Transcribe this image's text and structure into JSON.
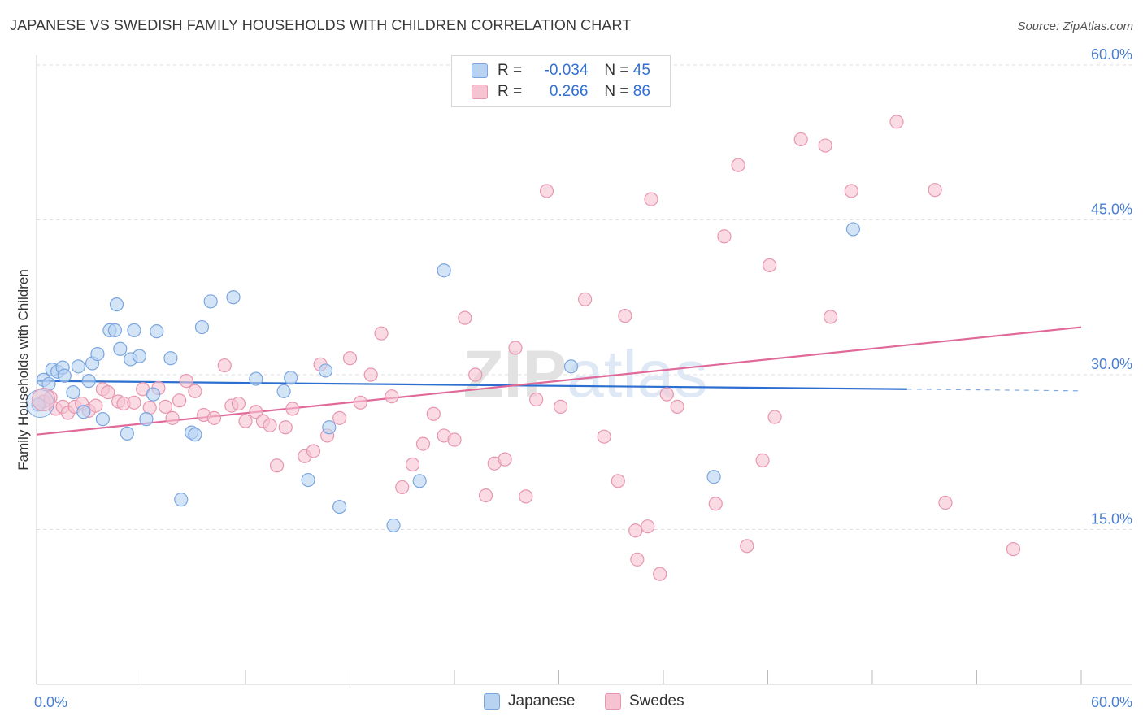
{
  "title": "JAPANESE VS SWEDISH FAMILY HOUSEHOLDS WITH CHILDREN CORRELATION CHART",
  "source": "Source: ZipAtlas.com",
  "watermark": "ZIPatlas",
  "legend": {
    "rows": [
      {
        "r_label": "R =",
        "r_value": "-0.034",
        "n_label": "N =",
        "n_value": "45"
      },
      {
        "r_label": "R =",
        "r_value": " 0.266",
        "n_label": "N =",
        "n_value": "86"
      }
    ]
  },
  "bottom_legend": {
    "japanese": "Japanese",
    "swedes": "Swedes"
  },
  "colors": {
    "japanese_fill": "#b8d2f2",
    "japanese_stroke": "#7aa6e0",
    "japanese_line": "#2c6fd0",
    "swedes_fill": "#f6c3d2",
    "swedes_stroke": "#e896b0",
    "swedes_line": "#e0699a",
    "tick": "#4a7fd0",
    "grid": "#dddddd"
  },
  "chart_data": {
    "type": "scatter",
    "xlabel": "",
    "ylabel": "Family Households with Children",
    "xlim": [
      0,
      60
    ],
    "ylim": [
      0,
      60
    ],
    "x_tick_labels": [
      "0.0%",
      "60.0%"
    ],
    "y_ticks": [
      15,
      30,
      45,
      60
    ],
    "y_tick_labels": [
      "15.0%",
      "30.0%",
      "45.0%",
      "60.0%"
    ],
    "grid": true,
    "series": [
      {
        "name": "Japanese",
        "r": -0.034,
        "n": 45,
        "trend": {
          "x0": 0,
          "y0": 29.4,
          "x1": 50,
          "y1": 28.6,
          "dashed_to": 60
        },
        "points": [
          [
            0.4,
            29.5
          ],
          [
            0.7,
            29.1
          ],
          [
            0.9,
            30.5
          ],
          [
            1.2,
            30.3
          ],
          [
            1.5,
            30.7
          ],
          [
            1.6,
            29.9
          ],
          [
            2.1,
            28.3
          ],
          [
            2.4,
            30.8
          ],
          [
            2.7,
            26.4
          ],
          [
            3.0,
            29.4
          ],
          [
            3.2,
            31.1
          ],
          [
            3.5,
            32.0
          ],
          [
            3.8,
            25.7
          ],
          [
            4.2,
            34.3
          ],
          [
            4.5,
            34.3
          ],
          [
            4.6,
            36.8
          ],
          [
            4.8,
            32.5
          ],
          [
            5.2,
            24.3
          ],
          [
            5.4,
            31.5
          ],
          [
            5.6,
            34.3
          ],
          [
            5.9,
            31.8
          ],
          [
            6.3,
            25.7
          ],
          [
            6.7,
            28.1
          ],
          [
            6.9,
            34.2
          ],
          [
            7.7,
            31.6
          ],
          [
            8.3,
            17.9
          ],
          [
            8.9,
            24.4
          ],
          [
            9.1,
            24.2
          ],
          [
            9.5,
            34.6
          ],
          [
            10.0,
            37.1
          ],
          [
            11.3,
            37.5
          ],
          [
            12.6,
            29.6
          ],
          [
            14.2,
            28.4
          ],
          [
            14.6,
            29.7
          ],
          [
            15.6,
            19.8
          ],
          [
            16.6,
            30.4
          ],
          [
            16.8,
            24.9
          ],
          [
            17.4,
            17.2
          ],
          [
            20.5,
            15.4
          ],
          [
            22.0,
            19.7
          ],
          [
            23.4,
            40.1
          ],
          [
            30.7,
            30.8
          ],
          [
            38.9,
            20.1
          ],
          [
            46.9,
            44.1
          ],
          [
            0.1,
            27.1
          ]
        ]
      },
      {
        "name": "Swedes",
        "r": 0.266,
        "n": 86,
        "trend": {
          "x0": 0,
          "y0": 24.2,
          "x1": 60,
          "y1": 34.6
        },
        "points": [
          [
            0.4,
            27.4
          ],
          [
            0.8,
            27.8
          ],
          [
            1.1,
            26.7
          ],
          [
            1.5,
            26.9
          ],
          [
            1.8,
            26.3
          ],
          [
            2.2,
            26.9
          ],
          [
            2.6,
            27.2
          ],
          [
            3.0,
            26.5
          ],
          [
            3.4,
            27.0
          ],
          [
            3.8,
            28.6
          ],
          [
            4.1,
            28.3
          ],
          [
            4.7,
            27.4
          ],
          [
            5.0,
            27.2
          ],
          [
            5.6,
            27.3
          ],
          [
            6.1,
            28.6
          ],
          [
            6.5,
            26.8
          ],
          [
            7.0,
            28.7
          ],
          [
            7.4,
            26.9
          ],
          [
            7.8,
            25.8
          ],
          [
            8.2,
            27.5
          ],
          [
            8.6,
            29.4
          ],
          [
            9.1,
            28.4
          ],
          [
            9.6,
            26.1
          ],
          [
            10.2,
            25.8
          ],
          [
            10.8,
            30.9
          ],
          [
            11.2,
            27.0
          ],
          [
            11.6,
            27.2
          ],
          [
            12.0,
            25.5
          ],
          [
            12.6,
            26.4
          ],
          [
            13.0,
            25.5
          ],
          [
            13.4,
            25.1
          ],
          [
            13.8,
            21.2
          ],
          [
            14.3,
            24.9
          ],
          [
            14.7,
            26.7
          ],
          [
            15.4,
            22.1
          ],
          [
            15.9,
            22.6
          ],
          [
            16.3,
            31.0
          ],
          [
            16.7,
            24.1
          ],
          [
            17.4,
            25.8
          ],
          [
            18.0,
            31.6
          ],
          [
            18.6,
            27.3
          ],
          [
            19.2,
            30.0
          ],
          [
            19.8,
            34.0
          ],
          [
            20.4,
            27.9
          ],
          [
            21.0,
            19.1
          ],
          [
            21.6,
            21.3
          ],
          [
            22.2,
            23.3
          ],
          [
            22.8,
            26.2
          ],
          [
            23.4,
            24.1
          ],
          [
            24.0,
            23.7
          ],
          [
            24.6,
            35.5
          ],
          [
            25.2,
            30.0
          ],
          [
            25.8,
            18.3
          ],
          [
            26.3,
            21.4
          ],
          [
            26.9,
            21.8
          ],
          [
            27.5,
            32.6
          ],
          [
            28.1,
            18.2
          ],
          [
            28.7,
            27.6
          ],
          [
            29.3,
            47.8
          ],
          [
            30.1,
            26.9
          ],
          [
            31.5,
            37.3
          ],
          [
            32.6,
            24.0
          ],
          [
            33.4,
            19.7
          ],
          [
            33.8,
            35.7
          ],
          [
            34.4,
            14.9
          ],
          [
            35.1,
            15.3
          ],
          [
            35.3,
            47.0
          ],
          [
            36.2,
            28.1
          ],
          [
            36.8,
            26.9
          ],
          [
            35.8,
            10.7
          ],
          [
            34.5,
            12.1
          ],
          [
            39.0,
            17.5
          ],
          [
            39.5,
            43.4
          ],
          [
            40.3,
            50.3
          ],
          [
            40.8,
            13.4
          ],
          [
            41.7,
            21.7
          ],
          [
            42.1,
            40.6
          ],
          [
            42.4,
            25.9
          ],
          [
            43.9,
            52.8
          ],
          [
            45.3,
            52.2
          ],
          [
            45.6,
            35.6
          ],
          [
            46.8,
            47.8
          ],
          [
            49.4,
            54.5
          ],
          [
            51.6,
            47.9
          ],
          [
            52.2,
            17.6
          ],
          [
            56.1,
            13.1
          ]
        ]
      }
    ]
  }
}
